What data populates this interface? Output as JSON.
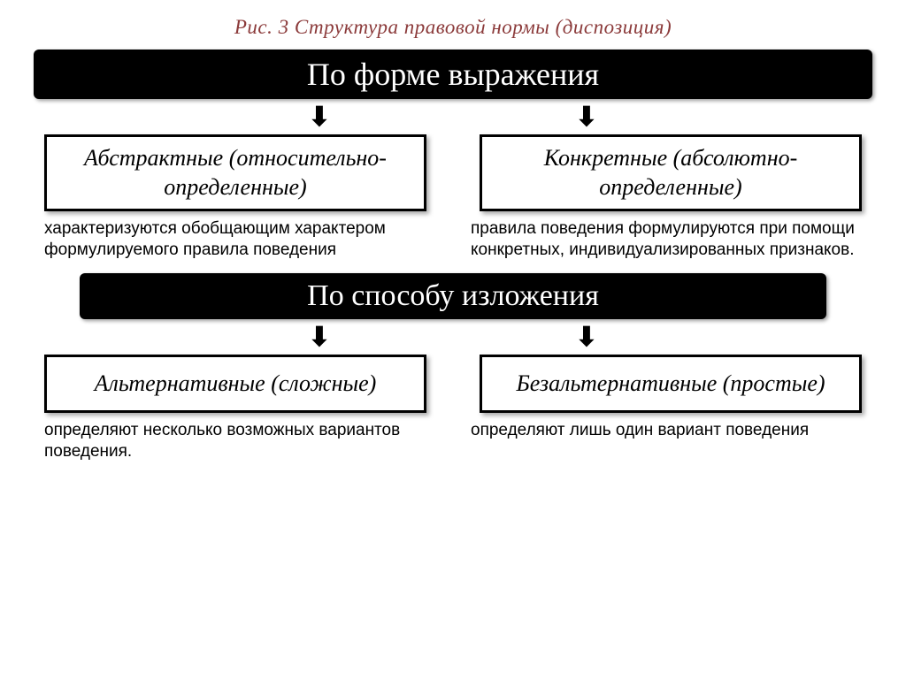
{
  "caption": "Рис. 3 Структура правовой нормы (диспозиция)",
  "caption_color": "#8b3a3a",
  "section1": {
    "header": "По форме выражения",
    "left_box": "Абстрактные (относительно-определенные)",
    "right_box": "Конкретные (абсолютно-определенные)",
    "left_desc": "характеризуются обобщающим характером формулируемого правила поведения",
    "right_desc": "правила поведения формулируются при помощи конкретных, индивидуализированных признаков."
  },
  "section2": {
    "header": "По способу изложения",
    "left_box": "Альтернативные (сложные)",
    "right_box": "Безальтернативные (простые)",
    "left_desc": "определяют несколько возможных вариантов поведения.",
    "right_desc": "определяют лишь один вариант поведения"
  },
  "colors": {
    "header_bg": "#000000",
    "header_text": "#ffffff",
    "box_border": "#000000",
    "background": "#ffffff"
  }
}
